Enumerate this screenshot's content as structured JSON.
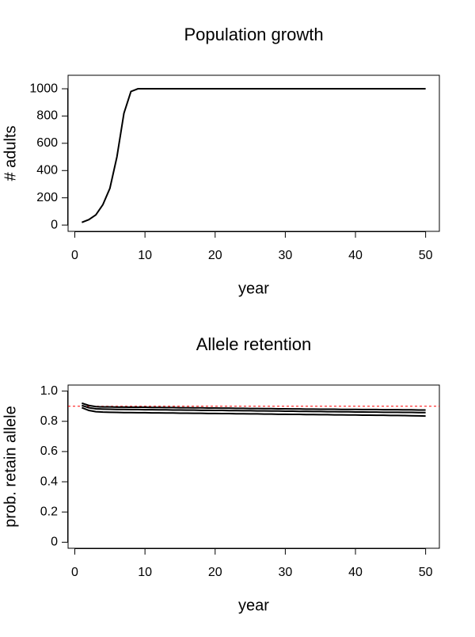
{
  "chart_data": [
    {
      "type": "line",
      "title": "Population growth",
      "x_label": "year",
      "y_label": "# adults",
      "x": [
        1,
        2,
        3,
        4,
        5,
        6,
        7,
        8,
        9,
        10,
        11,
        12,
        13,
        14,
        15,
        16,
        17,
        18,
        19,
        20,
        21,
        22,
        23,
        24,
        25,
        26,
        27,
        28,
        29,
        30,
        31,
        32,
        33,
        34,
        35,
        36,
        37,
        38,
        39,
        40,
        41,
        42,
        43,
        44,
        45,
        46,
        47,
        48,
        49,
        50
      ],
      "series": [
        {
          "color": "#000000",
          "values": [
            20,
            40,
            75,
            150,
            270,
            500,
            820,
            980,
            1000,
            1000,
            1000,
            1000,
            1000,
            1000,
            1000,
            1000,
            1000,
            1000,
            1000,
            1000,
            1000,
            1000,
            1000,
            1000,
            1000,
            1000,
            1000,
            1000,
            1000,
            1000,
            1000,
            1000,
            1000,
            1000,
            1000,
            1000,
            1000,
            1000,
            1000,
            1000,
            1000,
            1000,
            1000,
            1000,
            1000,
            1000,
            1000,
            1000,
            1000,
            1000
          ]
        }
      ],
      "xlim": [
        -0.96,
        51.96
      ],
      "xticks": [
        0,
        10,
        20,
        30,
        40,
        50
      ],
      "ylim": [
        -46,
        1099
      ],
      "yticks": [
        0,
        200,
        400,
        600,
        800,
        1000
      ]
    },
    {
      "type": "line",
      "title": "Allele retention",
      "x_label": "year",
      "y_label": "prob. retain allele",
      "x": [
        1,
        2,
        3,
        4,
        5,
        6,
        7,
        8,
        9,
        10,
        11,
        12,
        13,
        14,
        15,
        16,
        17,
        18,
        19,
        20,
        21,
        22,
        23,
        24,
        25,
        26,
        27,
        28,
        29,
        30,
        31,
        32,
        33,
        34,
        35,
        36,
        37,
        38,
        39,
        40,
        41,
        42,
        43,
        44,
        45,
        46,
        47,
        48,
        49,
        50
      ],
      "series": [
        {
          "color": "#000000",
          "values": [
            0.92,
            0.905,
            0.897,
            0.895,
            0.895,
            0.894,
            0.894,
            0.893,
            0.893,
            0.893,
            0.892,
            0.892,
            0.891,
            0.891,
            0.89,
            0.89,
            0.889,
            0.889,
            0.888,
            0.888,
            0.887,
            0.887,
            0.886,
            0.886,
            0.885,
            0.885,
            0.884,
            0.884,
            0.883,
            0.883,
            0.882,
            0.882,
            0.881,
            0.881,
            0.88,
            0.88,
            0.88,
            0.879,
            0.879,
            0.879,
            0.878,
            0.878,
            0.878,
            0.877,
            0.877,
            0.877,
            0.876,
            0.876,
            0.875,
            0.875
          ]
        },
        {
          "color": "#000000",
          "values": [
            0.905,
            0.89,
            0.883,
            0.881,
            0.88,
            0.879,
            0.879,
            0.878,
            0.878,
            0.877,
            0.877,
            0.876,
            0.876,
            0.875,
            0.875,
            0.874,
            0.874,
            0.873,
            0.873,
            0.872,
            0.872,
            0.871,
            0.871,
            0.87,
            0.87,
            0.869,
            0.869,
            0.868,
            0.868,
            0.867,
            0.867,
            0.866,
            0.866,
            0.865,
            0.865,
            0.864,
            0.864,
            0.863,
            0.863,
            0.862,
            0.862,
            0.861,
            0.861,
            0.86,
            0.86,
            0.86,
            0.859,
            0.859,
            0.858,
            0.858
          ]
        },
        {
          "color": "#000000",
          "values": [
            0.89,
            0.872,
            0.864,
            0.861,
            0.86,
            0.859,
            0.858,
            0.858,
            0.857,
            0.857,
            0.856,
            0.856,
            0.855,
            0.855,
            0.854,
            0.854,
            0.853,
            0.853,
            0.852,
            0.852,
            0.851,
            0.851,
            0.85,
            0.85,
            0.849,
            0.849,
            0.848,
            0.848,
            0.847,
            0.847,
            0.846,
            0.846,
            0.845,
            0.845,
            0.844,
            0.844,
            0.843,
            0.843,
            0.842,
            0.842,
            0.841,
            0.841,
            0.84,
            0.84,
            0.839,
            0.839,
            0.838,
            0.837,
            0.836,
            0.835
          ]
        }
      ],
      "hline": {
        "value": 0.9,
        "color": "#ff0000"
      },
      "xlim": [
        -0.96,
        51.96
      ],
      "xticks": [
        0,
        10,
        20,
        30,
        40,
        50
      ],
      "ylim": [
        -0.04,
        1.04
      ],
      "yticks": [
        0.0,
        0.2,
        0.4,
        0.6,
        0.8,
        {
          "value": 1.0,
          "label": "1.0"
        }
      ]
    }
  ]
}
